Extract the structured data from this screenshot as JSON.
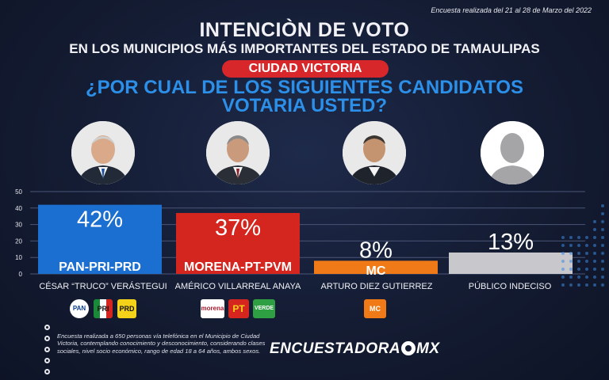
{
  "header": {
    "survey_date": "Encuesta realizada del 21 al 28 de Marzo del 2022",
    "title": "INTENCIÒN DE VOTO",
    "subtitle": "EN LOS MUNICIPIOS MÁS IMPORTANTES DEL ESTADO DE TAMAULIPAS",
    "city_badge": "CIUDAD VICTORIA",
    "question_line1": "¿POR CUAL DE LOS SIGUIENTES CANDIDATOS",
    "question_line2": "VOTARIA USTED?"
  },
  "chart_data": {
    "type": "bar",
    "categories": [
      "CÉSAR “TRUCO” VERÁSTEGUI",
      "AMÉRICO VILLARREAL ANAYA",
      "ARTURO DIEZ GUTIERREZ",
      "PÚBLICO INDECISO"
    ],
    "values": [
      42,
      37,
      8,
      13
    ],
    "value_labels": [
      "42%",
      "37%",
      "8%",
      "13%"
    ],
    "bar_labels": [
      "PAN-PRI-PRD",
      "MORENA-PT-PVM",
      "MC",
      ""
    ],
    "bar_colors": [
      "#1b6fd0",
      "#d4261f",
      "#f07a17",
      "#c8c8cc"
    ],
    "ylim": [
      0,
      50
    ],
    "yticks": [
      0,
      10,
      20,
      30,
      40,
      50
    ],
    "grid": true,
    "xlabel": "",
    "ylabel": "",
    "title": ""
  },
  "party_logos": [
    [
      "PAN",
      "PRI",
      "PRD"
    ],
    [
      "morena",
      "PT",
      "VERDE"
    ],
    [
      "MC"
    ],
    []
  ],
  "footer": {
    "method_note": "Encuesta realizada a 650 personas vía telefónica en el Municipio de Ciudad Victoria, contemplando conocimiento y desconocimiento, considerando clases sociales, nivel socio económico, rango de edad 18 a 64 años, ambos sexos.",
    "brand_left": "ENCUESTADORA",
    "brand_right": "MX"
  },
  "icons": {
    "avatar_placeholder": "person-silhouette-icon",
    "note_bullets": "circle-bullet-icon"
  }
}
